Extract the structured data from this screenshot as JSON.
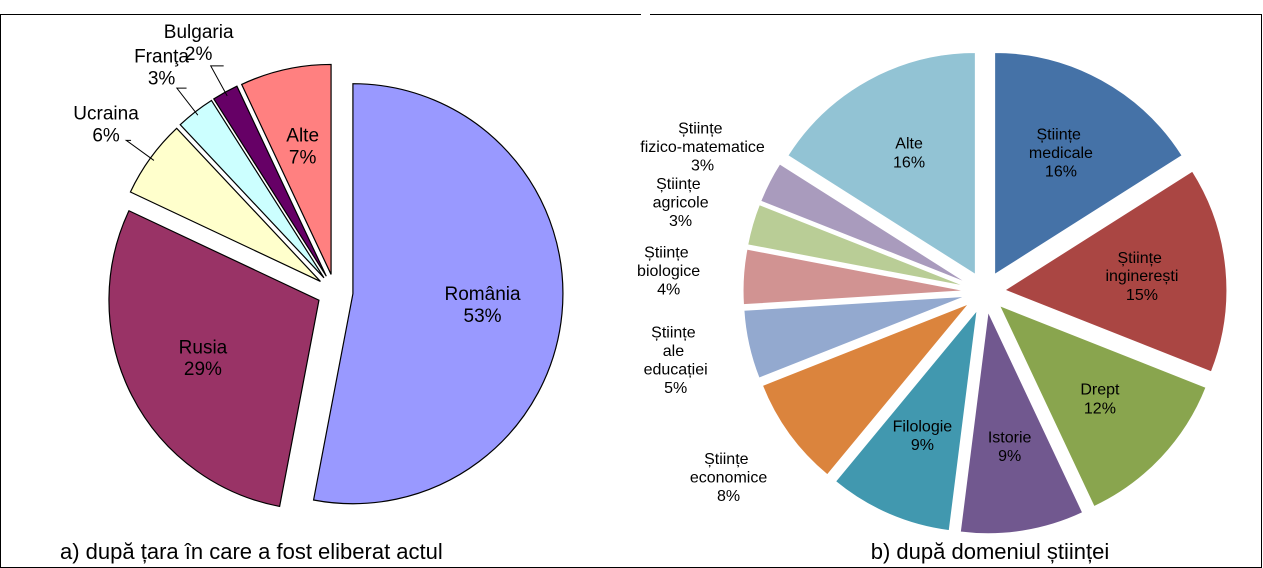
{
  "chart_data": [
    {
      "type": "pie",
      "title": "a) după țara în care a fost eliberat actul",
      "categories": [
        "România",
        "Rusia",
        "Ucraina",
        "Franţa",
        "Bulgaria",
        "Alte"
      ],
      "values": [
        53,
        29,
        6,
        3,
        2,
        7
      ],
      "value_labels": [
        "53%",
        "29%",
        "6%",
        "3%",
        "2%",
        "7%"
      ],
      "colors": [
        "#9999ff",
        "#993366",
        "#ffffcc",
        "#ccffff",
        "#660066",
        "#ff8080"
      ]
    },
    {
      "type": "pie",
      "title": "b) după domeniul științei",
      "categories": [
        "Științe medicale",
        "Științe inginerești",
        "Drept",
        "Istorie",
        "Filologie",
        "Științe economice",
        "Științe ale educației",
        "Științe biologice",
        "Științe agricole",
        "Științe fizico-matematice",
        "Alte"
      ],
      "values": [
        16,
        15,
        12,
        9,
        9,
        8,
        5,
        4,
        3,
        3,
        16
      ],
      "value_labels": [
        "16%",
        "15%",
        "12%",
        "9%",
        "9%",
        "8%",
        "5%",
        "4%",
        "3%",
        "3%",
        "16%"
      ],
      "colors": [
        "#4572a7",
        "#aa4643",
        "#89a54e",
        "#71588f",
        "#4198af",
        "#db843d",
        "#93a9cf",
        "#d19392",
        "#b9cd96",
        "#a99bbd",
        "#92c3d4"
      ]
    }
  ]
}
